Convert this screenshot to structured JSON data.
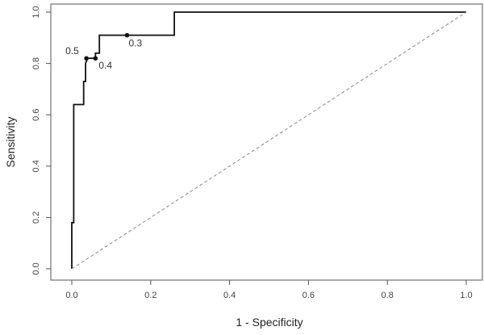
{
  "chart_data": {
    "type": "line",
    "title": "",
    "xlabel": "1 - Specificity",
    "ylabel": "Sensitivity",
    "xlim": [
      -0.04,
      1.04
    ],
    "ylim": [
      -0.04,
      1.04
    ],
    "x_ticks": [
      "0.0",
      "0.2",
      "0.4",
      "0.6",
      "0.8",
      "1.0"
    ],
    "y_ticks": [
      "0.0",
      "0.2",
      "0.4",
      "0.6",
      "0.8",
      "1.0"
    ],
    "grid": false,
    "series": [
      {
        "style": "solid",
        "x": [
          0.0,
          0.0,
          0.005,
          0.005,
          0.005,
          0.005,
          0.03,
          0.03,
          0.03,
          0.03,
          0.035,
          0.035,
          0.04,
          0.06,
          0.06,
          0.07,
          0.07,
          0.14,
          0.26,
          0.26,
          1.0
        ],
        "y": [
          0.0,
          0.18,
          0.18,
          0.37,
          0.37,
          0.64,
          0.64,
          0.73,
          0.73,
          0.73,
          0.73,
          0.8,
          0.82,
          0.82,
          0.84,
          0.84,
          0.91,
          0.91,
          0.91,
          1.0,
          1.0
        ]
      },
      {
        "style": "dashed",
        "x": [
          0,
          1
        ],
        "y": [
          0,
          1
        ]
      }
    ],
    "annotations": [
      {
        "text": "0.5",
        "x": 0.037,
        "y": 0.82
      },
      {
        "text": "0.4",
        "x": 0.06,
        "y": 0.82
      },
      {
        "text": "0.3",
        "x": 0.14,
        "y": 0.91
      }
    ]
  }
}
